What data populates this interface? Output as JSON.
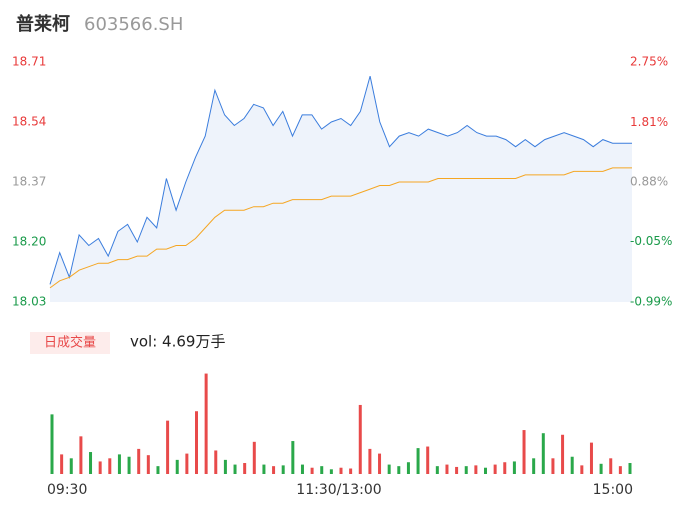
{
  "header": {
    "name": "普莱柯",
    "code": "603566.SH"
  },
  "chart_data": [
    {
      "type": "line",
      "x": [
        0,
        4,
        8,
        12,
        16,
        20,
        24,
        28,
        32,
        36,
        40,
        44,
        48,
        52,
        56,
        60,
        64,
        68,
        72,
        76,
        80,
        84,
        88,
        92,
        96,
        100,
        104,
        108,
        112,
        116,
        120,
        124,
        128,
        132,
        136,
        140,
        144,
        148,
        152,
        156,
        160,
        164,
        168,
        172,
        176,
        180,
        184,
        188,
        192,
        196,
        200,
        204,
        208,
        212,
        216,
        220,
        224,
        228,
        232,
        236,
        240
      ],
      "xlim": [
        0,
        240
      ],
      "ylim": [
        18.03,
        18.71
      ],
      "yticks": [
        18.03,
        {
          "value": 18.2,
          "label": "18.20"
        },
        18.37,
        18.54,
        18.71
      ],
      "ytick_colors": [
        "#1a9a4a",
        "#1a9a4a",
        "#999999",
        "#e83a3a",
        "#e83a3a"
      ],
      "y2lim": [
        -0.99,
        2.75
      ],
      "y2ticks": [
        {
          "value": -0.99,
          "label": "-0.99%"
        },
        {
          "value": -0.05,
          "label": "-0.05%"
        },
        {
          "value": 0.88,
          "label": "0.88%"
        },
        {
          "value": 1.81,
          "label": "1.81%"
        },
        {
          "value": 2.75,
          "label": "2.75%"
        }
      ],
      "area_color": "#eef3fb",
      "series": [
        {
          "color": "#3b7ddd",
          "values": [
            18.08,
            18.17,
            18.1,
            18.22,
            18.19,
            18.21,
            18.16,
            18.23,
            18.25,
            18.2,
            18.27,
            18.24,
            18.38,
            18.29,
            18.37,
            18.44,
            18.5,
            18.63,
            18.56,
            18.53,
            18.55,
            18.59,
            18.58,
            18.53,
            18.57,
            18.5,
            18.56,
            18.56,
            18.52,
            18.54,
            18.55,
            18.53,
            18.57,
            18.67,
            18.54,
            18.47,
            18.5,
            18.51,
            18.5,
            18.52,
            18.51,
            18.5,
            18.51,
            18.53,
            18.51,
            18.5,
            18.5,
            18.49,
            18.47,
            18.49,
            18.47,
            18.49,
            18.5,
            18.51,
            18.5,
            18.49,
            18.47,
            18.49,
            18.48,
            18.48,
            18.48
          ]
        },
        {
          "color": "#f5a623",
          "values": [
            18.07,
            18.09,
            18.1,
            18.12,
            18.13,
            18.14,
            18.14,
            18.15,
            18.15,
            18.16,
            18.16,
            18.18,
            18.18,
            18.19,
            18.19,
            18.21,
            18.24,
            18.27,
            18.29,
            18.29,
            18.29,
            18.3,
            18.3,
            18.31,
            18.31,
            18.32,
            18.32,
            18.32,
            18.32,
            18.33,
            18.33,
            18.33,
            18.34,
            18.35,
            18.36,
            18.36,
            18.37,
            18.37,
            18.37,
            18.37,
            18.38,
            18.38,
            18.38,
            18.38,
            18.38,
            18.38,
            18.38,
            18.38,
            18.38,
            18.39,
            18.39,
            18.39,
            18.39,
            18.39,
            18.4,
            18.4,
            18.4,
            18.4,
            18.41,
            18.41,
            18.41
          ]
        }
      ]
    },
    {
      "type": "bar",
      "title": "日成交量",
      "annotation": "vol: 4.69万手",
      "x": [
        0,
        4,
        8,
        12,
        16,
        20,
        24,
        28,
        32,
        36,
        40,
        44,
        48,
        52,
        56,
        60,
        64,
        68,
        72,
        76,
        80,
        84,
        88,
        92,
        96,
        100,
        104,
        108,
        112,
        116,
        120,
        124,
        128,
        132,
        136,
        140,
        144,
        148,
        152,
        156,
        160,
        164,
        168,
        172,
        176,
        180,
        184,
        188,
        192,
        196,
        200,
        204,
        208,
        212,
        216,
        220,
        224,
        228,
        232,
        236,
        240
      ],
      "xlim": [
        0,
        240
      ],
      "xticks": [
        {
          "value": 0,
          "label": "09:30"
        },
        {
          "value": 120,
          "label": "11:30/13:00"
        },
        {
          "value": 240,
          "label": "15:00"
        }
      ],
      "ylim": [
        0,
        1300
      ],
      "values": [
        760,
        250,
        200,
        480,
        280,
        160,
        200,
        250,
        220,
        320,
        240,
        100,
        680,
        180,
        260,
        800,
        1280,
        300,
        180,
        120,
        140,
        410,
        120,
        100,
        110,
        420,
        120,
        80,
        100,
        60,
        80,
        70,
        880,
        320,
        260,
        120,
        100,
        150,
        330,
        350,
        100,
        120,
        90,
        100,
        110,
        80,
        120,
        150,
        160,
        560,
        200,
        520,
        200,
        500,
        220,
        110,
        400,
        130,
        200,
        100,
        140
      ],
      "colors": [
        "#2aa84a",
        "#e84a4a",
        "#2aa84a",
        "#e84a4a",
        "#2aa84a",
        "#e84a4a",
        "#e84a4a",
        "#2aa84a",
        "#2aa84a",
        "#e84a4a",
        "#e84a4a",
        "#2aa84a",
        "#e84a4a",
        "#2aa84a",
        "#e84a4a",
        "#e84a4a",
        "#e84a4a",
        "#e84a4a",
        "#2aa84a",
        "#2aa84a",
        "#e84a4a",
        "#e84a4a",
        "#2aa84a",
        "#e84a4a",
        "#2aa84a",
        "#2aa84a",
        "#2aa84a",
        "#e84a4a",
        "#2aa84a",
        "#2aa84a",
        "#e84a4a",
        "#e84a4a",
        "#e84a4a",
        "#e84a4a",
        "#e84a4a",
        "#2aa84a",
        "#2aa84a",
        "#2aa84a",
        "#2aa84a",
        "#e84a4a",
        "#2aa84a",
        "#e84a4a",
        "#e84a4a",
        "#2aa84a",
        "#e84a4a",
        "#2aa84a",
        "#e84a4a",
        "#e84a4a",
        "#2aa84a",
        "#e84a4a",
        "#2aa84a",
        "#2aa84a",
        "#e84a4a",
        "#e84a4a",
        "#2aa84a",
        "#e84a4a",
        "#e84a4a",
        "#2aa84a",
        "#e84a4a",
        "#e84a4a",
        "#2aa84a"
      ]
    }
  ]
}
